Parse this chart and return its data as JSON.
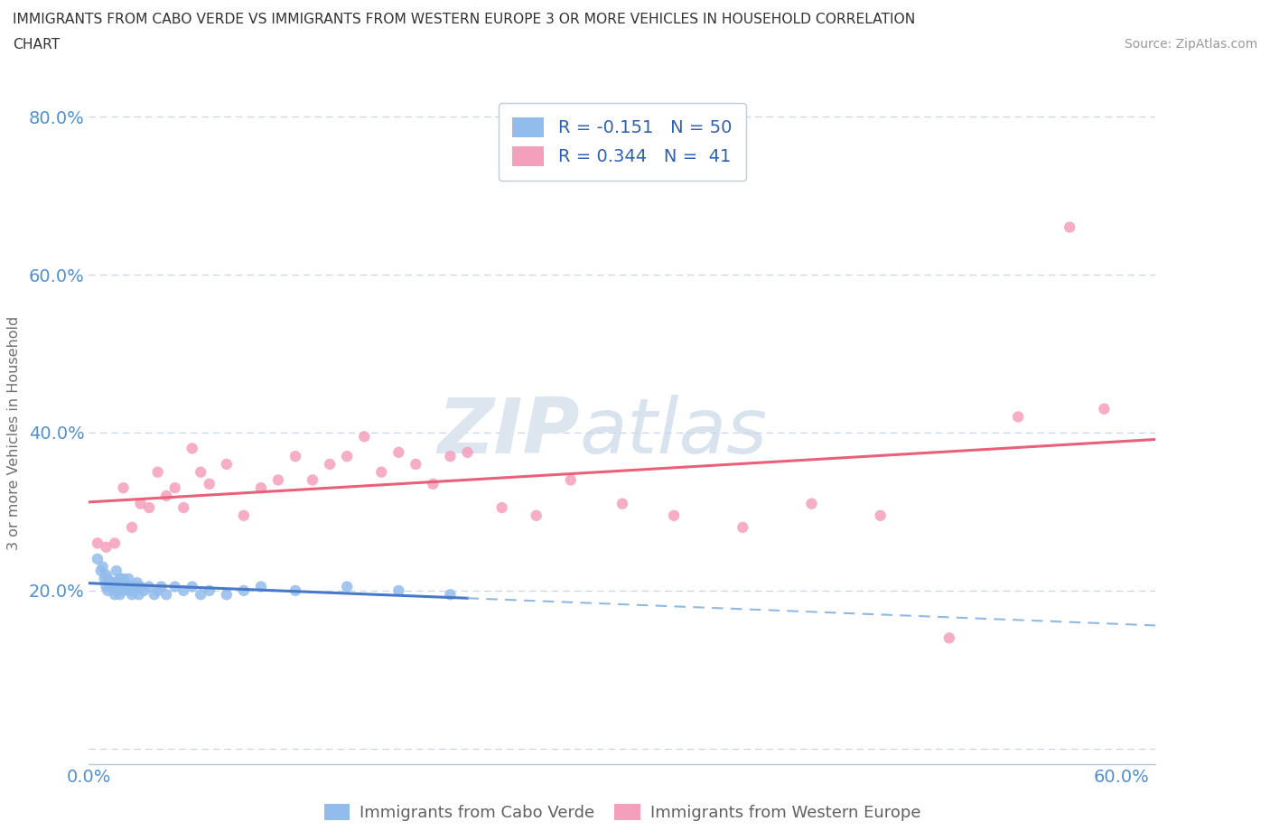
{
  "title_line1": "IMMIGRANTS FROM CABO VERDE VS IMMIGRANTS FROM WESTERN EUROPE 3 OR MORE VEHICLES IN HOUSEHOLD CORRELATION",
  "title_line2": "CHART",
  "source": "Source: ZipAtlas.com",
  "ylabel": "3 or more Vehicles in Household",
  "xlim": [
    0.0,
    0.62
  ],
  "ylim": [
    -0.02,
    0.82
  ],
  "cabo_verde_R": -0.151,
  "cabo_verde_N": 50,
  "western_europe_R": 0.344,
  "western_europe_N": 41,
  "cabo_verde_color": "#92bcec",
  "western_europe_color": "#f4a0bc",
  "cabo_verde_line_color": "#4878c8",
  "western_europe_line_color": "#e8607a",
  "cabo_verde_dash_color": "#90b8e0",
  "tick_color": "#5090d0",
  "watermark_zip": "ZIP",
  "watermark_atlas": "atlas",
  "cabo_verde_x": [
    0.005,
    0.007,
    0.008,
    0.009,
    0.01,
    0.01,
    0.011,
    0.011,
    0.012,
    0.013,
    0.014,
    0.015,
    0.015,
    0.016,
    0.016,
    0.017,
    0.018,
    0.018,
    0.019,
    0.02,
    0.02,
    0.021,
    0.022,
    0.023,
    0.024,
    0.025,
    0.025,
    0.026,
    0.027,
    0.028,
    0.029,
    0.03,
    0.032,
    0.035,
    0.038,
    0.04,
    0.042,
    0.045,
    0.05,
    0.055,
    0.06,
    0.065,
    0.07,
    0.08,
    0.09,
    0.1,
    0.12,
    0.15,
    0.18,
    0.21
  ],
  "cabo_verde_y": [
    0.24,
    0.225,
    0.23,
    0.215,
    0.22,
    0.205,
    0.215,
    0.2,
    0.21,
    0.205,
    0.21,
    0.195,
    0.21,
    0.225,
    0.2,
    0.21,
    0.215,
    0.195,
    0.205,
    0.215,
    0.2,
    0.21,
    0.205,
    0.215,
    0.2,
    0.205,
    0.195,
    0.2,
    0.205,
    0.21,
    0.195,
    0.205,
    0.2,
    0.205,
    0.195,
    0.2,
    0.205,
    0.195,
    0.205,
    0.2,
    0.205,
    0.195,
    0.2,
    0.195,
    0.2,
    0.205,
    0.2,
    0.205,
    0.2,
    0.195
  ],
  "western_europe_x": [
    0.005,
    0.01,
    0.015,
    0.02,
    0.025,
    0.03,
    0.035,
    0.04,
    0.045,
    0.05,
    0.055,
    0.06,
    0.065,
    0.07,
    0.08,
    0.09,
    0.1,
    0.11,
    0.12,
    0.13,
    0.14,
    0.15,
    0.16,
    0.17,
    0.18,
    0.19,
    0.2,
    0.21,
    0.22,
    0.24,
    0.26,
    0.28,
    0.31,
    0.34,
    0.38,
    0.42,
    0.46,
    0.5,
    0.54,
    0.57,
    0.59
  ],
  "western_europe_y": [
    0.26,
    0.255,
    0.26,
    0.33,
    0.28,
    0.31,
    0.305,
    0.35,
    0.32,
    0.33,
    0.305,
    0.38,
    0.35,
    0.335,
    0.36,
    0.295,
    0.33,
    0.34,
    0.37,
    0.34,
    0.36,
    0.37,
    0.395,
    0.35,
    0.375,
    0.36,
    0.335,
    0.37,
    0.375,
    0.305,
    0.295,
    0.34,
    0.31,
    0.295,
    0.28,
    0.31,
    0.295,
    0.14,
    0.42,
    0.66,
    0.43
  ]
}
